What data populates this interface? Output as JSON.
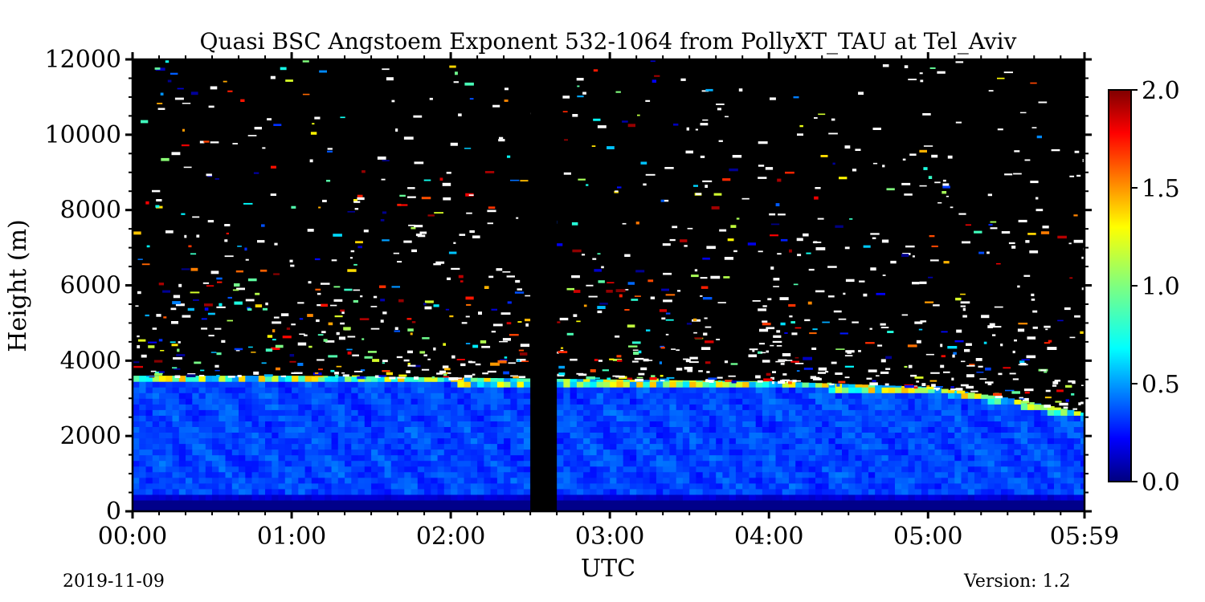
{
  "chart_data": {
    "type": "heatmap",
    "title": "Quasi BSC Angstoem Exponent 532-1064 from PollyXT_TAU at Tel_Aviv",
    "xlabel": "UTC",
    "ylabel": "Height (m)",
    "x_ticks": [
      "00:00",
      "01:00",
      "02:00",
      "03:00",
      "04:00",
      "05:00",
      "05:59"
    ],
    "x_tick_minutes": [
      0,
      60,
      120,
      180,
      240,
      300,
      359
    ],
    "xlim_minutes": [
      0,
      359
    ],
    "y_ticks": [
      "0",
      "2000",
      "4000",
      "6000",
      "8000",
      "10000",
      "12000"
    ],
    "y_tick_values": [
      0,
      2000,
      4000,
      6000,
      8000,
      10000,
      12000
    ],
    "ylim": [
      0,
      12000
    ],
    "colorbar": {
      "ticks": [
        "0.0",
        "0.5",
        "1.0",
        "1.5",
        "2.0"
      ],
      "tick_values": [
        0.0,
        0.5,
        1.0,
        1.5,
        2.0
      ],
      "range": [
        0.0,
        2.0
      ],
      "colormap": "jet"
    },
    "data_gap_minutes": [
      150,
      160
    ],
    "aerosol_layer_top_m": [
      3600,
      3600,
      3550,
      3500,
      3450,
      3300,
      3000,
      2600
    ],
    "aerosol_layer_top_minutes": [
      0,
      60,
      120,
      180,
      240,
      300,
      330,
      359
    ],
    "no_data_color": "#000000",
    "noise_color": "#ffffff",
    "grid": false
  },
  "footer": {
    "date": "2019-11-09",
    "version": "Version: 1.2"
  }
}
